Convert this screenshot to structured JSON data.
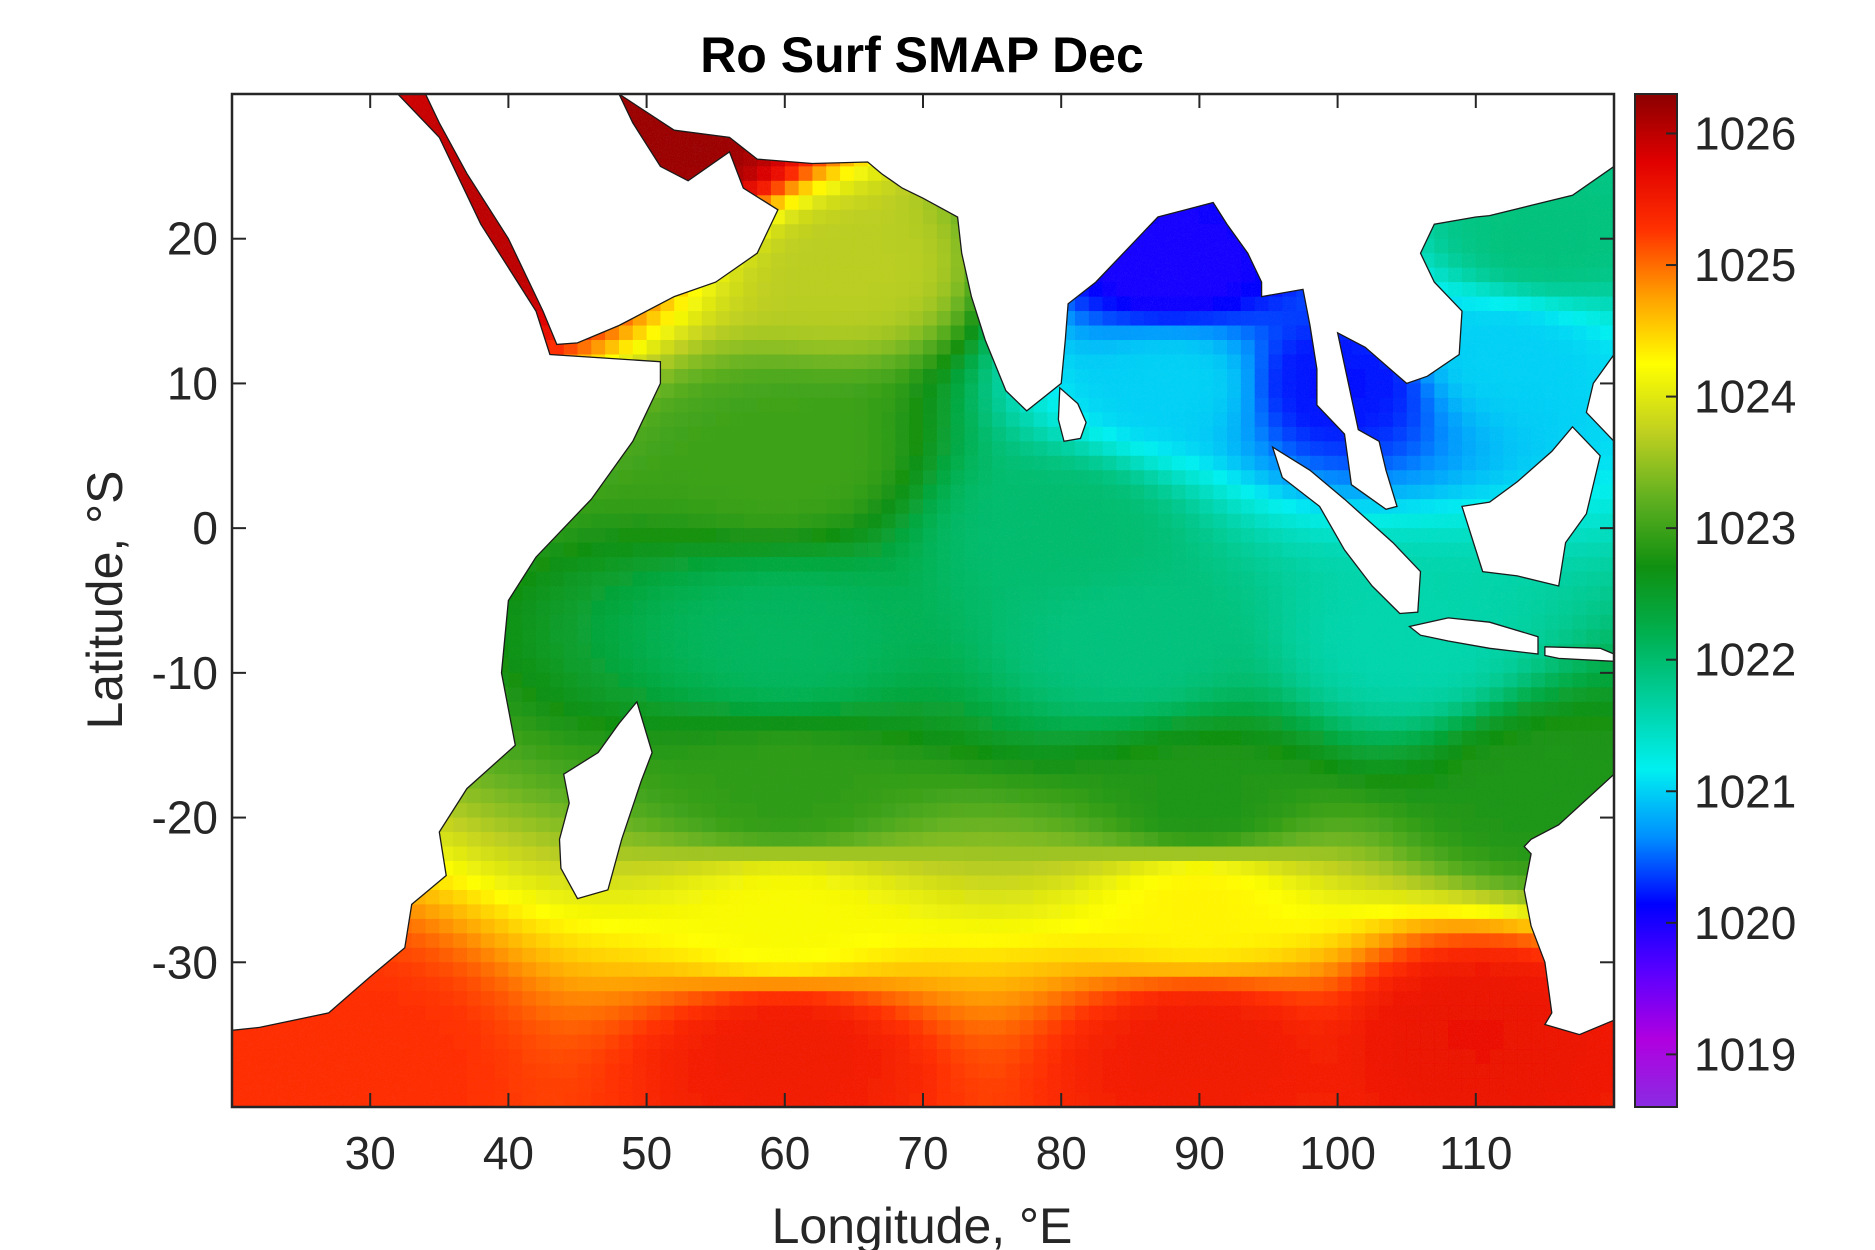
{
  "chart_data": {
    "type": "heatmap",
    "title": "Ro Surf SMAP Dec",
    "xlabel": "Longitude, °E",
    "ylabel": "Latitude, °S",
    "xlim": [
      20,
      120
    ],
    "ylim": [
      -40,
      30
    ],
    "xticks": [
      30,
      40,
      50,
      60,
      70,
      80,
      90,
      100,
      110
    ],
    "yticks": [
      -30,
      -20,
      -10,
      0,
      10,
      20
    ],
    "xtick_labels": [
      "30",
      "40",
      "50",
      "60",
      "70",
      "80",
      "90",
      "100",
      "110"
    ],
    "ytick_labels": [
      "-30",
      "-20",
      "-10",
      "0",
      "10",
      "20"
    ],
    "colorbar": {
      "range": [
        1018.6,
        1026.3
      ],
      "ticks": [
        1019,
        1020,
        1021,
        1022,
        1023,
        1024,
        1025,
        1026
      ],
      "tick_labels": [
        "1019",
        "1020",
        "1021",
        "1022",
        "1023",
        "1024",
        "1025",
        "1026"
      ],
      "colormap": [
        "#8a2be2",
        "#b000e0",
        "#5a00ff",
        "#0000ff",
        "#0090ff",
        "#00f0f0",
        "#00d0a0",
        "#00b050",
        "#109010",
        "#60b020",
        "#c0d020",
        "#ffff00",
        "#ffa000",
        "#ff3000",
        "#e00000",
        "#8b0000"
      ]
    },
    "field_description_points": [
      {
        "lon": 28,
        "lat": -37,
        "value": 1025.3
      },
      {
        "lon": 60,
        "lat": -36,
        "value": 1025.5
      },
      {
        "lon": 90,
        "lat": -36,
        "value": 1025.5
      },
      {
        "lon": 110,
        "lat": -35,
        "value": 1025.6
      },
      {
        "lon": 60,
        "lat": -27,
        "value": 1024.2
      },
      {
        "lon": 90,
        "lat": -26,
        "value": 1024.3
      },
      {
        "lon": 60,
        "lat": -18,
        "value": 1022.9
      },
      {
        "lon": 90,
        "lat": -19,
        "value": 1022.8
      },
      {
        "lon": 115,
        "lat": -18,
        "value": 1022.8
      },
      {
        "lon": 60,
        "lat": -8,
        "value": 1022.1
      },
      {
        "lon": 85,
        "lat": -8,
        "value": 1021.9
      },
      {
        "lon": 105,
        "lat": -8,
        "value": 1021.6
      },
      {
        "lon": 60,
        "lat": 5,
        "value": 1023.0
      },
      {
        "lon": 65,
        "lat": 18,
        "value": 1023.7
      },
      {
        "lon": 80,
        "lat": 0,
        "value": 1022.0
      },
      {
        "lon": 88,
        "lat": 10,
        "value": 1021.0
      },
      {
        "lon": 88,
        "lat": 18,
        "value": 1020.0
      },
      {
        "lon": 100,
        "lat": 10,
        "value": 1020.2
      },
      {
        "lon": 112,
        "lat": 12,
        "value": 1021.0
      },
      {
        "lon": 115,
        "lat": 20,
        "value": 1021.9
      },
      {
        "lon": 38,
        "lat": 20,
        "value": 1026.0
      },
      {
        "lon": 52,
        "lat": 27,
        "value": 1026.2
      }
    ]
  }
}
